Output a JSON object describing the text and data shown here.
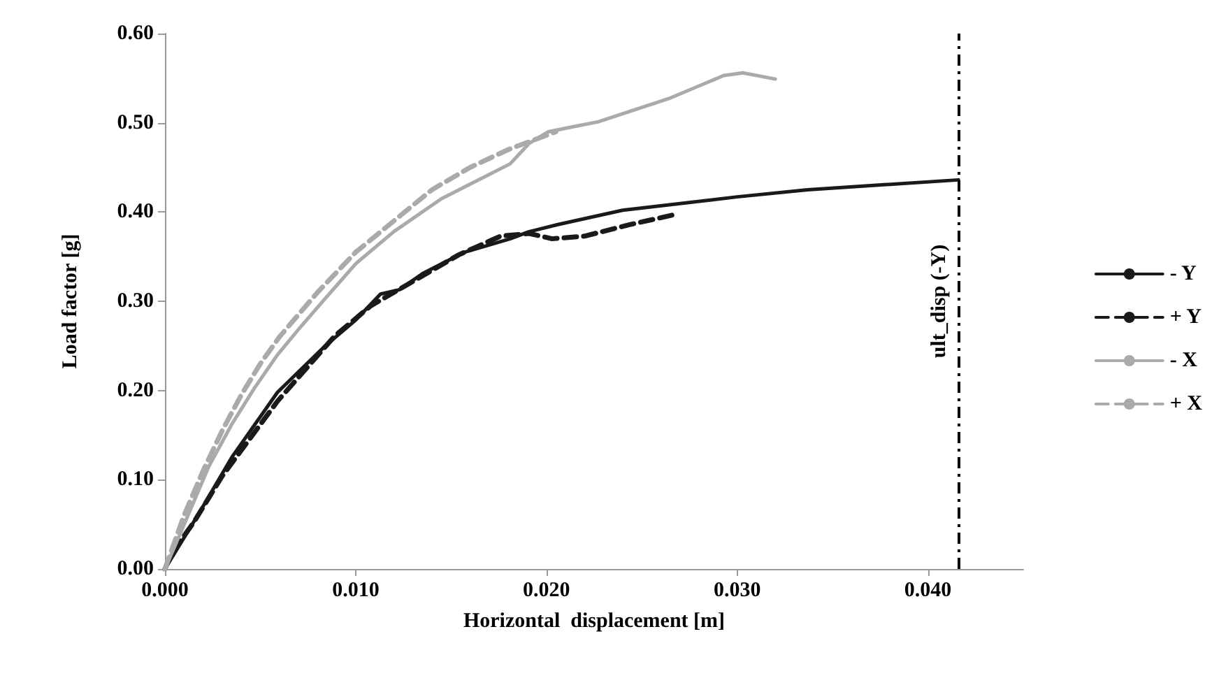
{
  "chart_data": {
    "type": "line",
    "xlabel": "Horizontal  displacement [m]",
    "ylabel": "Load factor [g]",
    "xlim": [
      0,
      0.045
    ],
    "xticks": [
      {
        "value": 0,
        "label": "0.000"
      },
      {
        "value": 0.01,
        "label": "0.010"
      },
      {
        "value": 0.02,
        "label": "0.020"
      },
      {
        "value": 0.03,
        "label": "0.030"
      },
      {
        "value": 0.04,
        "label": "0.040"
      }
    ],
    "ylim": [
      0,
      0.6
    ],
    "yticks": [
      {
        "value": 0,
        "label": "0.00"
      },
      {
        "value": 0.1,
        "label": "0.10"
      },
      {
        "value": 0.2,
        "label": "0.20"
      },
      {
        "value": 0.3,
        "label": "0.30"
      },
      {
        "value": 0.4,
        "label": "0.40"
      },
      {
        "value": 0.5,
        "label": "0.50"
      },
      {
        "value": 0.6,
        "label": "0.60"
      }
    ],
    "grid": false,
    "legend": "right",
    "marker": "none",
    "series": [
      {
        "name": "- Y",
        "color": "#1a1a1a",
        "line_style": "solid",
        "x": [
          0,
          0.0018,
          0.0035,
          0.0059,
          0.0084,
          0.01,
          0.0113,
          0.0123,
          0.0135,
          0.0157,
          0.0181,
          0.0191,
          0.0206,
          0.024,
          0.03,
          0.0337,
          0.0416
        ],
        "values": [
          0,
          0.063,
          0.125,
          0.198,
          0.25,
          0.279,
          0.308,
          0.313,
          0.331,
          0.355,
          0.37,
          0.378,
          0.386,
          0.402,
          0.417,
          0.425,
          0.436
        ]
      },
      {
        "name": "+ Y",
        "color": "#1a1a1a",
        "line_style": "dashed",
        "x": [
          0,
          0.0003,
          0.0015,
          0.003,
          0.0059,
          0.0089,
          0.0108,
          0.0154,
          0.0176,
          0.0191,
          0.0203,
          0.022,
          0.0244,
          0.0269
        ],
        "values": [
          0,
          0.016,
          0.052,
          0.104,
          0.188,
          0.261,
          0.295,
          0.352,
          0.373,
          0.376,
          0.37,
          0.373,
          0.386,
          0.398
        ]
      },
      {
        "name": "- X",
        "color": "#aaaaaa",
        "line_style": "solid",
        "x": [
          0,
          0.00105,
          0.0023,
          0.0035,
          0.0047,
          0.0059,
          0.0071,
          0.0084,
          0.01,
          0.012,
          0.0145,
          0.0169,
          0.0181,
          0.0191,
          0.0201,
          0.0215,
          0.0227,
          0.0264,
          0.0293,
          0.0303,
          0.032
        ],
        "values": [
          0,
          0.052,
          0.115,
          0.162,
          0.203,
          0.24,
          0.271,
          0.303,
          0.342,
          0.378,
          0.415,
          0.441,
          0.454,
          0.477,
          0.49,
          0.496,
          0.501,
          0.527,
          0.553,
          0.556,
          0.549
        ]
      },
      {
        "name": "+ X",
        "color": "#aaaaaa",
        "line_style": "dashed",
        "x": [
          0,
          0.001,
          0.002,
          0.003,
          0.004,
          0.005,
          0.006,
          0.008,
          0.01,
          0.012,
          0.014,
          0.016,
          0.018,
          0.0205
        ],
        "values": [
          0,
          0.06,
          0.11,
          0.155,
          0.195,
          0.23,
          0.26,
          0.31,
          0.355,
          0.39,
          0.425,
          0.45,
          0.47,
          0.49
        ]
      }
    ],
    "ref_lines": [
      {
        "axis": "x",
        "value": 0.0416,
        "label": "ult_disp (-Y)",
        "color": "#000000",
        "line_style": "dashdot"
      }
    ]
  }
}
